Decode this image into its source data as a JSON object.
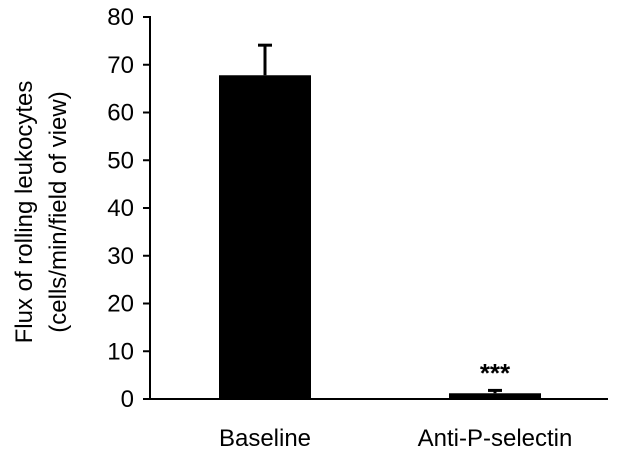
{
  "chart_data": {
    "type": "bar",
    "categories": [
      "Baseline",
      "Anti-P-selectin"
    ],
    "series": [
      {
        "values": [
          67.8,
          1.2
        ],
        "error_upper": [
          74.1,
          1.8
        ],
        "color": "#000000"
      }
    ],
    "ylabel_lines": [
      "Flux of rolling leukocytes",
      "(cells/min/field of view)"
    ],
    "ylim": [
      0,
      80
    ],
    "yticks": [
      0,
      10,
      20,
      30,
      40,
      50,
      60,
      70,
      80
    ],
    "annotations": [
      {
        "category": "Anti-P-selectin",
        "text": "***"
      }
    ],
    "grid": false,
    "legend": "none"
  }
}
